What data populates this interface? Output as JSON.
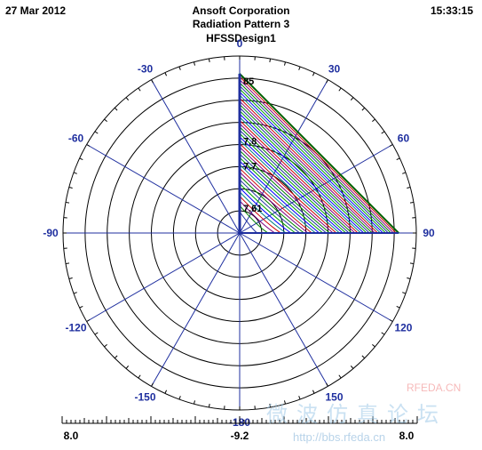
{
  "header": {
    "date": "27 Mar 2012",
    "time": "15:33:15",
    "company": "Ansoft Corporation",
    "plot_title": "Radiation Pattern 3",
    "design": "HFSSDesign1"
  },
  "scale": {
    "left_label": "8.0",
    "center_label": "-9.2",
    "right_label": "8.0"
  },
  "watermark": {
    "site": "RFEDA.CN",
    "chinese": "微波仿真论坛",
    "url": "http://bbs.rfeda.cn"
  },
  "chart_data": {
    "type": "polar",
    "angle_labels": [
      "0",
      "30",
      "60",
      "90",
      "120",
      "150",
      "-180",
      "-150",
      "-120",
      "-90",
      "-60",
      "-30"
    ],
    "angles_deg": [
      0,
      30,
      60,
      90,
      120,
      150,
      180,
      210,
      240,
      270,
      300,
      330
    ],
    "radial_labels": [
      "85",
      "7.8",
      "7.7",
      "7.61"
    ],
    "radial_range": [
      -9.2,
      8.0
    ],
    "rings": 8,
    "grid": true,
    "colors": {
      "grid": "#1f2f9f",
      "rings": "#000000",
      "traces": [
        "#1f2f9f",
        "#008000",
        "#800080",
        "#cc0000",
        "#008080",
        "#0000ff",
        "#00a000"
      ]
    },
    "trace_count": 40
  }
}
